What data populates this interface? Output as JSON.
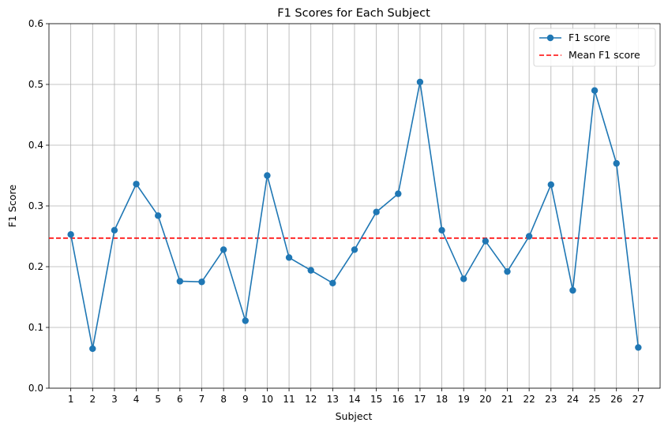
{
  "chart_data": {
    "type": "line",
    "title": "F1 Scores for Each Subject",
    "xlabel": "Subject",
    "ylabel": "F1 Score",
    "x": [
      1,
      2,
      3,
      4,
      5,
      6,
      7,
      8,
      9,
      10,
      11,
      12,
      13,
      14,
      15,
      16,
      17,
      18,
      19,
      20,
      21,
      22,
      23,
      24,
      25,
      26,
      27
    ],
    "x_ticks": [
      "1",
      "2",
      "3",
      "4",
      "5",
      "6",
      "7",
      "8",
      "9",
      "10",
      "11",
      "12",
      "13",
      "14",
      "15",
      "16",
      "17",
      "18",
      "19",
      "20",
      "21",
      "22",
      "23",
      "24",
      "25",
      "26",
      "27"
    ],
    "ylim": [
      0,
      0.6
    ],
    "y_ticks": [
      "0.0",
      "0.1",
      "0.2",
      "0.3",
      "0.4",
      "0.5",
      "0.6"
    ],
    "grid": true,
    "legend_position": "top-right",
    "series": [
      {
        "name": "F1 score",
        "color": "#1f77b4",
        "marker": "circle",
        "values": [
          0.253,
          0.065,
          0.26,
          0.336,
          0.284,
          0.176,
          0.175,
          0.228,
          0.111,
          0.35,
          0.215,
          0.194,
          0.173,
          0.228,
          0.29,
          0.32,
          0.504,
          0.26,
          0.18,
          0.242,
          0.192,
          0.25,
          0.335,
          0.161,
          0.49,
          0.37,
          0.067
        ]
      }
    ],
    "reference_lines": [
      {
        "name": "Mean F1 score",
        "color": "#ff0000",
        "style": "dashed",
        "y": 0.247
      }
    ]
  }
}
